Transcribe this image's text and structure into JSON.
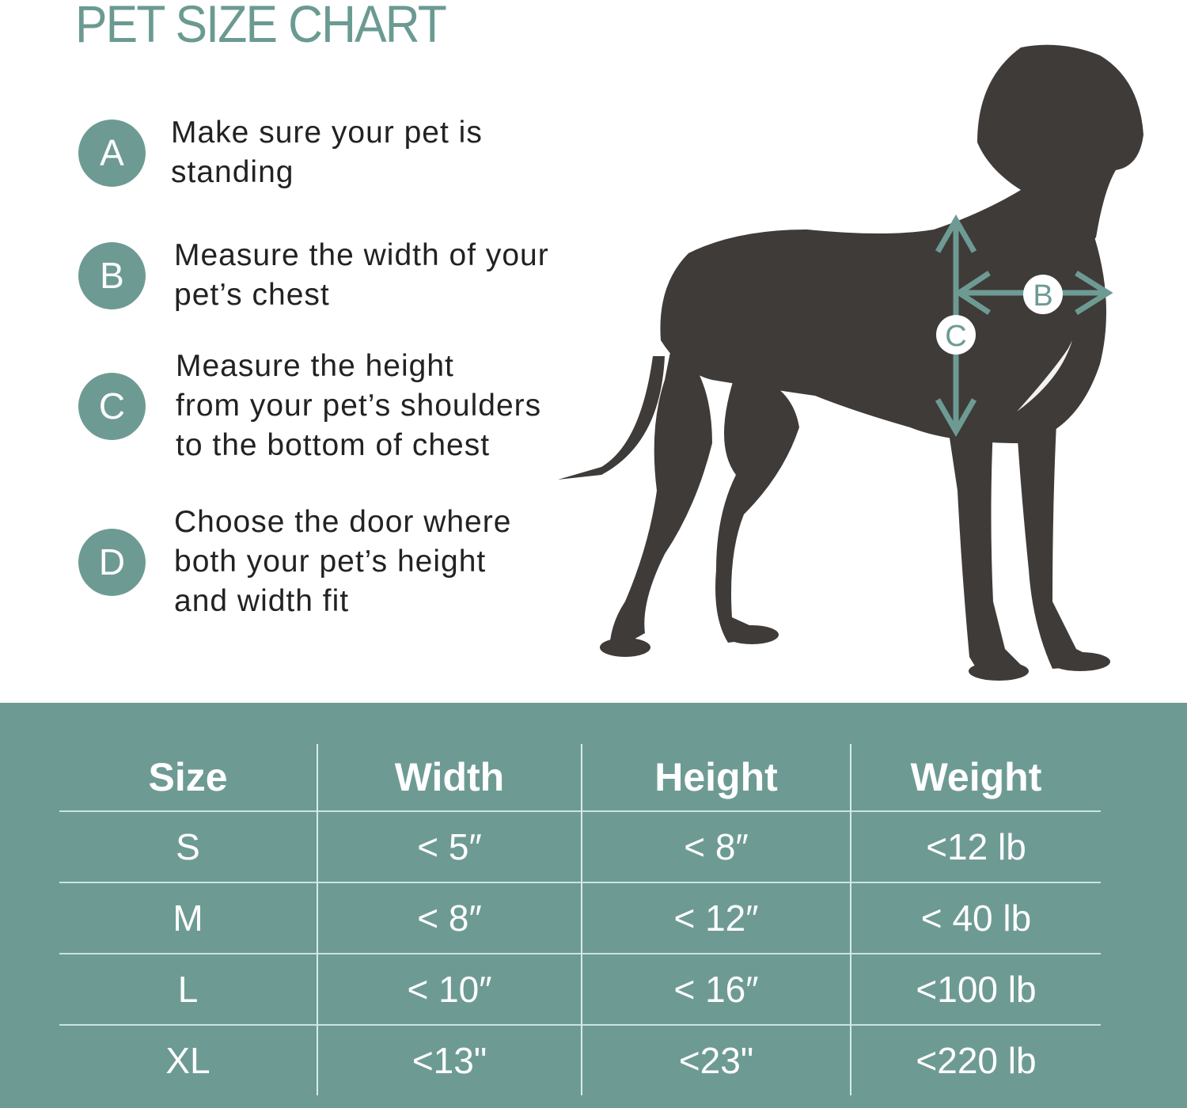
{
  "title": "PET SIZE CHART",
  "steps": [
    {
      "letter": "A",
      "text": "Make sure your pet is\nstanding"
    },
    {
      "letter": "B",
      "text": "Measure the width of your\npet’s chest"
    },
    {
      "letter": "C",
      "text": "Measure the height\nfrom your pet’s shoulders\nto the bottom of chest"
    },
    {
      "letter": "D",
      "text": "Choose the door where\nboth your pet’s height\nand width fit"
    }
  ],
  "diagram": {
    "width_marker": "B",
    "height_marker": "C"
  },
  "table": {
    "headers": [
      "Size",
      "Width",
      "Height",
      "Weight"
    ],
    "rows": [
      [
        "S",
        "< 5″",
        "< 8″",
        "<12 lb"
      ],
      [
        "M",
        "< 8″",
        "< 12″",
        "< 40 lb"
      ],
      [
        "L",
        "< 10″",
        "< 16″",
        "<100 lb"
      ],
      [
        "XL",
        "<13\"",
        "<23\"",
        "<220 lb"
      ]
    ]
  },
  "colors": {
    "accent": "#6d9b94",
    "text": "#222222",
    "dog": "#3f3b39"
  }
}
